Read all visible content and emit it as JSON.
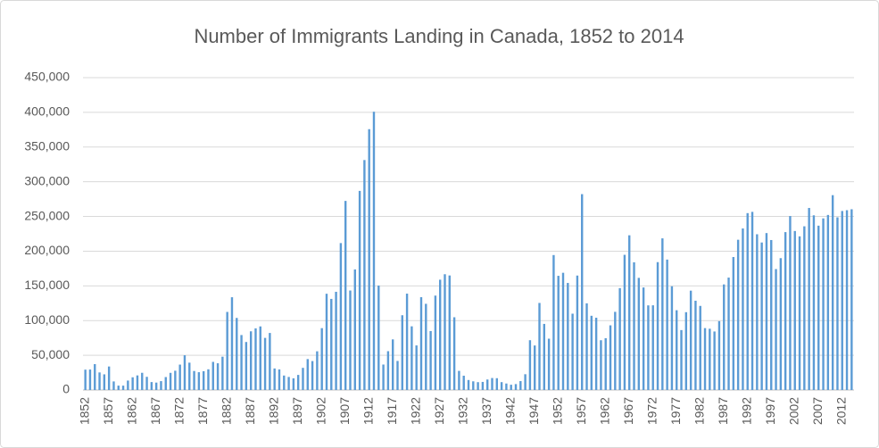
{
  "chart_data": {
    "type": "bar",
    "title": "Number of Immigrants Landing in Canada, 1852 to 2014",
    "categories": [
      "1852",
      null,
      null,
      null,
      null,
      "1857",
      null,
      null,
      null,
      null,
      "1862",
      null,
      null,
      null,
      null,
      "1867",
      null,
      null,
      null,
      null,
      "1872",
      null,
      null,
      null,
      null,
      "1877",
      null,
      null,
      null,
      null,
      "1882",
      null,
      null,
      null,
      null,
      "1887",
      null,
      null,
      null,
      null,
      "1892",
      null,
      null,
      null,
      null,
      "1897",
      null,
      null,
      null,
      null,
      "1902",
      null,
      null,
      null,
      null,
      "1907",
      null,
      null,
      null,
      null,
      "1912",
      null,
      null,
      null,
      null,
      "1917",
      null,
      null,
      null,
      null,
      "1922",
      null,
      null,
      null,
      null,
      "1927",
      null,
      null,
      null,
      null,
      "1932",
      null,
      null,
      null,
      null,
      "1937",
      null,
      null,
      null,
      null,
      "1942",
      null,
      null,
      null,
      null,
      "1947",
      null,
      null,
      null,
      null,
      "1952",
      null,
      null,
      null,
      null,
      "1957",
      null,
      null,
      null,
      null,
      "1962",
      null,
      null,
      null,
      null,
      "1967",
      null,
      null,
      null,
      null,
      "1972",
      null,
      null,
      null,
      null,
      "1977",
      null,
      null,
      null,
      null,
      "1982",
      null,
      null,
      null,
      null,
      "1987",
      null,
      null,
      null,
      null,
      "1992",
      null,
      null,
      null,
      null,
      "1997",
      null,
      null,
      null,
      null,
      "2002",
      null,
      null,
      null,
      null,
      "2007",
      null,
      null,
      null,
      null,
      "2012",
      null,
      null
    ],
    "values": [
      29307,
      29464,
      37263,
      25296,
      22544,
      33854,
      12339,
      6300,
      6276,
      13589,
      18294,
      21000,
      24779,
      18958,
      11427,
      10666,
      12765,
      18630,
      24706,
      27773,
      36578,
      50050,
      39373,
      27382,
      25633,
      27082,
      29807,
      40492,
      38505,
      47991,
      112458,
      133624,
      103824,
      79169,
      69152,
      84526,
      88766,
      91600,
      75067,
      82165,
      30996,
      29633,
      20829,
      18790,
      16835,
      21716,
      31900,
      44543,
      41681,
      55747,
      89102,
      138660,
      131252,
      141465,
      211653,
      272409,
      143326,
      173694,
      286839,
      331288,
      375756,
      400870,
      150484,
      36665,
      55914,
      72910,
      41845,
      107698,
      138824,
      91728,
      64224,
      133729,
      124164,
      84907,
      135982,
      158886,
      166783,
      164993,
      104806,
      27530,
      20591,
      14382,
      12476,
      11277,
      11643,
      15101,
      17244,
      16994,
      11324,
      9329,
      7576,
      8504,
      12801,
      22722,
      71719,
      64127,
      125414,
      95217,
      73912,
      194391,
      164498,
      168868,
      154227,
      109946,
      164857,
      282164,
      124851,
      106928,
      104111,
      71689,
      74586,
      93151,
      112606,
      146758,
      194743,
      222876,
      183974,
      161531,
      147713,
      121900,
      122006,
      184200,
      218465,
      187881,
      149429,
      114914,
      86313,
      112096,
      143117,
      128618,
      121147,
      89157,
      88239,
      84302,
      99219,
      152098,
      161929,
      191556,
      216452,
      232744,
      254817,
      256641,
      224364,
      212504,
      226073,
      216038,
      174195,
      189951,
      227458,
      250638,
      229048,
      221349,
      235823,
      262242,
      251640,
      236753,
      247246,
      252179,
      280691,
      248748,
      257903,
      259023,
      260404
    ],
    "color": "#5b9bd5",
    "ylim": [
      0,
      450000
    ],
    "yticks": [
      0,
      {
        "value": 50000,
        "label": "50,000"
      },
      {
        "value": 100000,
        "label": "100,000"
      },
      {
        "value": 150000,
        "label": "150,000"
      },
      {
        "value": 200000,
        "label": "200,000"
      },
      {
        "value": 250000,
        "label": "250,000"
      },
      {
        "value": 300000,
        "label": "300,000"
      },
      {
        "value": 350000,
        "label": "350,000"
      },
      {
        "value": 400000,
        "label": "400,000"
      },
      {
        "value": 450000,
        "label": "450,000"
      }
    ],
    "grid": true
  }
}
